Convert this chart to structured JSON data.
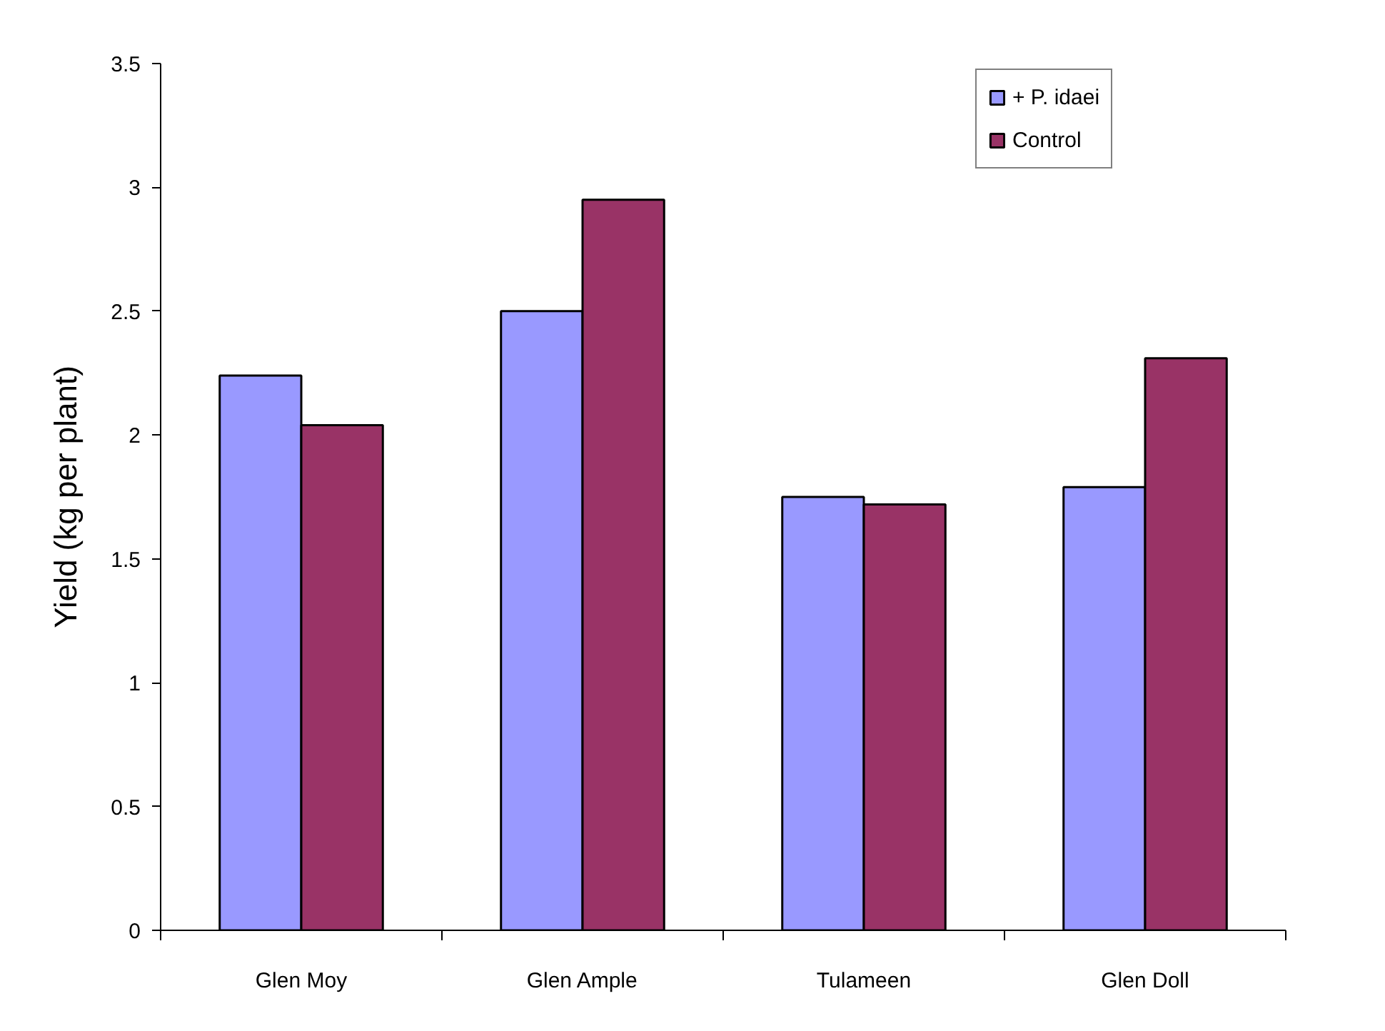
{
  "chart_data": {
    "type": "bar",
    "ylabel": "Yield (kg per plant)",
    "categories": [
      "Glen Moy",
      "Glen Ample",
      "Tulameen",
      "Glen Doll"
    ],
    "series": [
      {
        "name": "+ P. idaei",
        "color": "#9999ff",
        "values": [
          2.24,
          2.5,
          1.75,
          1.79
        ]
      },
      {
        "name": "Control",
        "color": "#993366",
        "values": [
          2.04,
          2.95,
          1.72,
          2.31
        ]
      }
    ],
    "ylim": [
      0,
      3.5
    ],
    "yticks": [
      0,
      0.5,
      1,
      1.5,
      2,
      2.5,
      3,
      3.5
    ],
    "grid": false,
    "legend": "top right"
  }
}
